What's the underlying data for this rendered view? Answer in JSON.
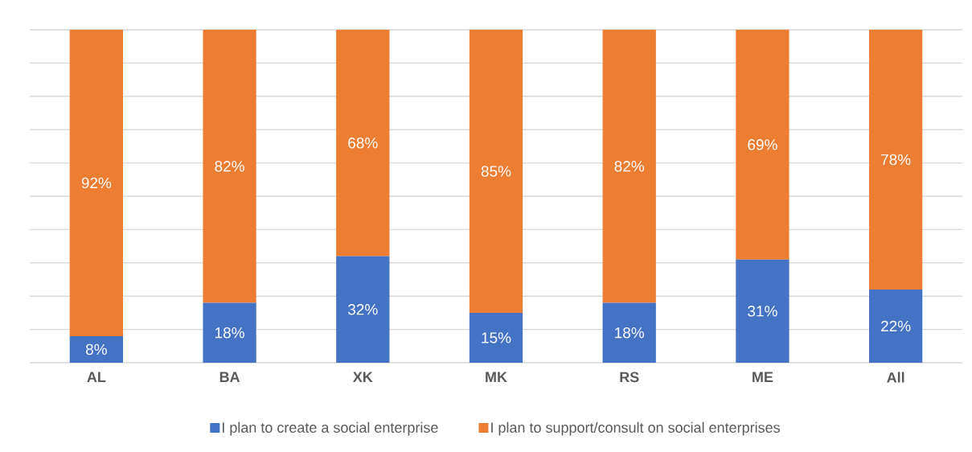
{
  "chart_data": {
    "type": "bar",
    "stacked": true,
    "categories": [
      "AL",
      "BA",
      "XK",
      "MK",
      "RS",
      "ME",
      "All"
    ],
    "series": [
      {
        "name": "I plan to create a social enterprise",
        "color": "#4472c4",
        "values": [
          8,
          18,
          32,
          15,
          18,
          31,
          22
        ],
        "value_labels": [
          "8%",
          "18%",
          "32%",
          "15%",
          "18%",
          "31%",
          "22%"
        ]
      },
      {
        "name": "I plan to support/consult on social enterprises",
        "color": "#ed7d31",
        "values": [
          92,
          82,
          68,
          85,
          82,
          69,
          78
        ],
        "value_labels": [
          "92%",
          "82%",
          "68%",
          "85%",
          "82%",
          "69%",
          "78%"
        ]
      }
    ],
    "ylim": [
      0,
      100
    ],
    "yticks": [
      {
        "value": 0,
        "label": null
      },
      {
        "value": 10,
        "label": null
      },
      {
        "value": 20,
        "label": null
      },
      {
        "value": 30,
        "label": null
      },
      {
        "value": 40,
        "label": null
      },
      {
        "value": 50,
        "label": null
      },
      {
        "value": 60,
        "label": null
      },
      {
        "value": 70,
        "label": null
      },
      {
        "value": 80,
        "label": null
      },
      {
        "value": 90,
        "label": null
      },
      {
        "value": 100,
        "label": null
      }
    ],
    "tick_labels": "x",
    "grid": "y",
    "legend": "bottom"
  }
}
